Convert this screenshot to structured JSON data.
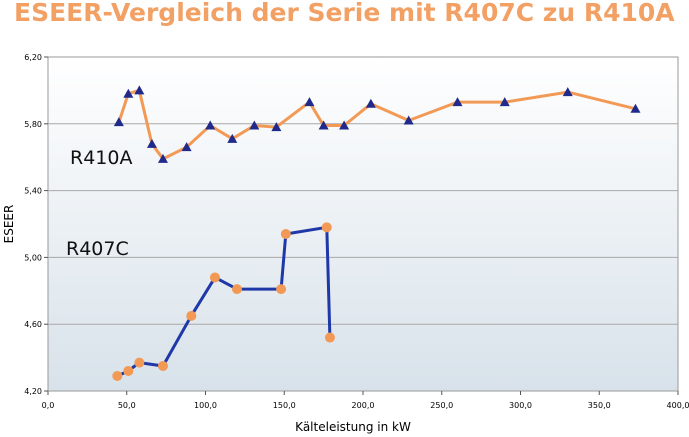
{
  "chart_data": {
    "type": "line",
    "title": "ESEER-Vergleich der Serie mit R407C zu R410A",
    "xlabel": "Kälteleistung in kW",
    "ylabel": "ESEER",
    "xlim": [
      0,
      400
    ],
    "ylim": [
      4.2,
      6.2
    ],
    "x_ticks": [
      "0,0",
      "50,0",
      "100,0",
      "150,0",
      "200,0",
      "250,0",
      "300,0",
      "350,0",
      "400,0"
    ],
    "y_ticks": [
      "4,20",
      "4,60",
      "5,00",
      "5,40",
      "5,80",
      "6,20"
    ],
    "grid": "horizontal",
    "series": [
      {
        "name": "R410A",
        "line_color": "#f29a55",
        "marker": "triangle",
        "marker_color": "#1f2a8a",
        "points": [
          [
            45,
            5.81
          ],
          [
            51,
            5.98
          ],
          [
            58,
            6.0
          ],
          [
            66,
            5.68
          ],
          [
            73,
            5.59
          ],
          [
            88,
            5.66
          ],
          [
            103,
            5.79
          ],
          [
            117,
            5.71
          ],
          [
            131,
            5.79
          ],
          [
            145,
            5.78
          ],
          [
            166,
            5.93
          ],
          [
            175,
            5.79
          ],
          [
            188,
            5.79
          ],
          [
            205,
            5.92
          ],
          [
            229,
            5.82
          ],
          [
            260,
            5.93
          ],
          [
            290,
            5.93
          ],
          [
            330,
            5.99
          ],
          [
            373,
            5.89
          ]
        ]
      },
      {
        "name": "R407C",
        "line_color": "#1f38a8",
        "marker": "circle",
        "marker_color": "#f29a55",
        "points": [
          [
            44,
            4.29
          ],
          [
            51,
            4.32
          ],
          [
            58,
            4.37
          ],
          [
            73,
            4.35
          ],
          [
            91,
            4.65
          ],
          [
            106,
            4.88
          ],
          [
            120,
            4.81
          ],
          [
            148,
            4.81
          ],
          [
            151,
            5.14
          ],
          [
            177,
            5.18
          ],
          [
            179,
            4.52
          ]
        ]
      }
    ]
  }
}
